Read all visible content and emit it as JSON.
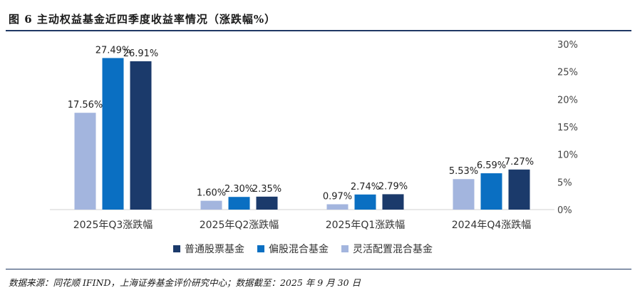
{
  "header": {
    "title": "图 6 主动权益基金近四季度收益率情况（涨跌幅%）"
  },
  "footer": {
    "source": "数据来源：同花顺 IFIND，上海证券基金评价研究中心；数据截至：2025 年 9 月 30 日"
  },
  "colors": {
    "series_0": "#a3b5de",
    "series_1": "#0a6fc2",
    "series_2": "#1b3a6b",
    "axis_text": "#444444"
  },
  "chart_data": {
    "type": "bar",
    "categories": [
      "2025年Q3涨跌幅",
      "2025年Q2涨跌幅",
      "2025年Q1涨跌幅",
      "2024年Q4涨跌幅"
    ],
    "series": [
      {
        "name": "灵活配置混合基金",
        "values": [
          17.56,
          1.6,
          0.97,
          5.53
        ],
        "labels": [
          "17.56%",
          "1.60%",
          "0.97%",
          "5.53%"
        ]
      },
      {
        "name": "偏股混合基金",
        "values": [
          27.49,
          2.3,
          2.74,
          6.59
        ],
        "labels": [
          "27.49%",
          "2.30%",
          "2.74%",
          "6.59%"
        ]
      },
      {
        "name": "普通股票基金",
        "values": [
          26.91,
          2.35,
          2.79,
          7.27
        ],
        "labels": [
          "26.91%",
          "2.35%",
          "2.79%",
          "7.27%"
        ]
      }
    ],
    "legend_order": [
      2,
      1,
      0
    ],
    "legend_position": "bottom",
    "y_axis_side": "right",
    "ylim": [
      0,
      30
    ],
    "yticks": [
      "0%",
      "5%",
      "10%",
      "15%",
      "20%",
      "25%",
      "30%"
    ],
    "grid": false
  }
}
